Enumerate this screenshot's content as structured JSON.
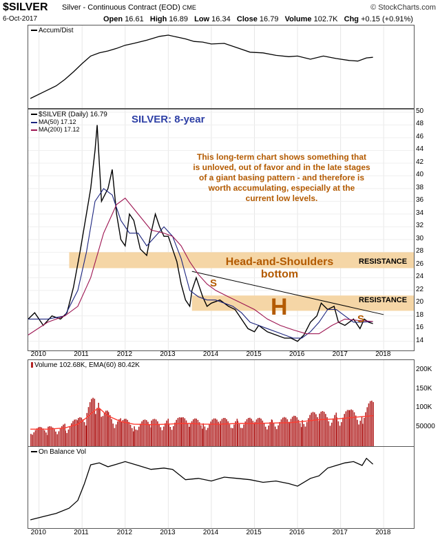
{
  "header": {
    "symbol": "$SILVER",
    "description": "Silver - Continuous Contract (EOD)",
    "exchange": "CME",
    "brand": "© StockCharts.com",
    "date": "6-Oct-2017",
    "open_label": "Open",
    "open": "16.61",
    "high_label": "High",
    "high": "16.89",
    "low_label": "Low",
    "low": "16.34",
    "close_label": "Close",
    "close": "16.79",
    "volume_label": "Volume",
    "volume": "102.7K",
    "chg_label": "Chg",
    "chg": "+0.15 (+0.91%)"
  },
  "colors": {
    "price": "#000000",
    "ma50": "#1a237e",
    "ma200": "#9c1350",
    "band": "#f5d6a6",
    "volume_bar": "#b22222",
    "volume_ema": "#ff3b30",
    "annotation": "#b35a00",
    "title_blue": "#2d3fa5"
  },
  "panels": {
    "accum": {
      "label": "Accum/Dist"
    },
    "price": {
      "label": "$SILVER (Daily) 16.79",
      "ma50_label": "MA(50) 17.12",
      "ma200_label": "MA(200) 17.12",
      "y_ticks": [
        "50",
        "48",
        "46",
        "44",
        "42",
        "40",
        "38",
        "36",
        "34",
        "32",
        "30",
        "28",
        "26",
        "24",
        "22",
        "20",
        "18",
        "16",
        "14"
      ]
    },
    "volume": {
      "label": "Volume 102.68K, EMA(60) 80.42K",
      "y_ticks": [
        "200K",
        "150K",
        "100K",
        "50000"
      ]
    },
    "obv": {
      "label": "On Balance Vol"
    }
  },
  "annotations": {
    "title": "SILVER: 8-year",
    "comment_lines": [
      "This long-term chart shows something that",
      "is unloved, out of favor and in the late stages",
      "of a giant basing pattern - and therefore is",
      "worth accumulating, especially at the",
      "current low levels."
    ],
    "pattern_line1": "Head-and-Shoulders",
    "pattern_line2": "bottom",
    "resistance_upper": "RESISTANCE",
    "resistance_lower": "RESISTANCE",
    "left_shoulder": "S",
    "head": "H",
    "right_shoulder": "S"
  },
  "x_axis": [
    "2010",
    "2011",
    "2012",
    "2013",
    "2014",
    "2015",
    "2016",
    "2017",
    "2018"
  ],
  "chart_data": [
    {
      "type": "line",
      "title": "Accum/Dist",
      "x": [
        2009.8,
        2010.1,
        2010.4,
        2010.6,
        2010.8,
        2011.0,
        2011.2,
        2011.4,
        2011.6,
        2011.8,
        2012.0,
        2012.2,
        2012.5,
        2012.8,
        2013.0,
        2013.2,
        2013.4,
        2013.6,
        2013.8,
        2014.0,
        2014.3,
        2014.6,
        2014.9,
        2015.2,
        2015.5,
        2015.8,
        2016.0,
        2016.3,
        2016.6,
        2016.9,
        2017.2,
        2017.4,
        2017.6,
        2017.75
      ],
      "values": [
        0,
        10,
        20,
        30,
        42,
        55,
        67,
        72,
        75,
        79,
        84,
        87,
        92,
        98,
        100,
        97,
        94,
        90,
        89,
        86,
        87,
        80,
        73,
        72,
        68,
        66,
        67,
        62,
        67,
        63,
        60,
        59,
        64,
        65
      ],
      "ylim": [
        0,
        100
      ]
    },
    {
      "type": "line",
      "title": "$SILVER (Daily) 16.79",
      "series": [
        {
          "name": "$SILVER (Daily) 16.79",
          "x": [
            2009.75,
            2009.9,
            2010.1,
            2010.3,
            2010.5,
            2010.65,
            2010.8,
            2010.95,
            2011.1,
            2011.2,
            2011.3,
            2011.35,
            2011.45,
            2011.6,
            2011.7,
            2011.8,
            2011.9,
            2012.0,
            2012.1,
            2012.2,
            2012.35,
            2012.5,
            2012.6,
            2012.7,
            2012.8,
            2012.9,
            2013.0,
            2013.1,
            2013.2,
            2013.3,
            2013.4,
            2013.5,
            2013.55,
            2013.65,
            2013.8,
            2013.9,
            2014.0,
            2014.2,
            2014.4,
            2014.55,
            2014.7,
            2014.85,
            2015.0,
            2015.1,
            2015.3,
            2015.5,
            2015.7,
            2015.85,
            2016.0,
            2016.15,
            2016.3,
            2016.45,
            2016.55,
            2016.7,
            2016.85,
            2016.95,
            2017.1,
            2017.3,
            2017.45,
            2017.55,
            2017.65,
            2017.75
          ],
          "values": [
            17.5,
            18.5,
            16.5,
            18.0,
            17.5,
            18.5,
            22.5,
            28.0,
            34.0,
            38.0,
            44.0,
            48.0,
            36.0,
            38.0,
            41.0,
            34.0,
            30.0,
            29.0,
            34.0,
            33.0,
            28.5,
            27.5,
            31.0,
            34.0,
            32.0,
            30.5,
            30.5,
            28.5,
            26.5,
            23.0,
            20.5,
            19.5,
            22.0,
            24.0,
            21.0,
            19.5,
            20.0,
            20.5,
            19.5,
            19.0,
            17.5,
            16.0,
            15.5,
            16.5,
            15.5,
            15.0,
            14.5,
            14.5,
            14.0,
            15.0,
            17.0,
            18.0,
            20.0,
            19.0,
            19.5,
            17.0,
            16.5,
            17.5,
            16.0,
            17.5,
            17.0,
            16.79
          ]
        },
        {
          "name": "MA(50) 17.12",
          "x": [
            2009.75,
            2010.2,
            2010.6,
            2010.9,
            2011.1,
            2011.3,
            2011.5,
            2011.7,
            2011.9,
            2012.1,
            2012.3,
            2012.5,
            2012.7,
            2012.9,
            2013.1,
            2013.3,
            2013.5,
            2013.7,
            2013.9,
            2014.1,
            2014.3,
            2014.5,
            2014.7,
            2014.9,
            2015.1,
            2015.3,
            2015.5,
            2015.7,
            2015.9,
            2016.1,
            2016.3,
            2016.5,
            2016.7,
            2016.9,
            2017.1,
            2017.3,
            2017.5,
            2017.75
          ],
          "values": [
            17.5,
            17.5,
            18.0,
            22.0,
            28.0,
            36.0,
            38.0,
            37.0,
            33.0,
            31.0,
            31.0,
            29.0,
            30.5,
            32.0,
            30.5,
            27.0,
            22.0,
            21.0,
            20.5,
            20.5,
            20.0,
            19.5,
            18.5,
            17.0,
            16.5,
            16.0,
            15.5,
            15.0,
            14.5,
            14.5,
            15.5,
            17.0,
            19.0,
            19.0,
            18.0,
            17.0,
            17.0,
            17.12
          ]
        },
        {
          "name": "MA(200) 17.12",
          "x": [
            2009.75,
            2010.2,
            2010.6,
            2010.9,
            2011.2,
            2011.5,
            2011.8,
            2012.0,
            2012.3,
            2012.6,
            2012.9,
            2013.1,
            2013.3,
            2013.5,
            2013.7,
            2013.9,
            2014.1,
            2014.4,
            2014.7,
            2015.0,
            2015.3,
            2015.6,
            2015.9,
            2016.2,
            2016.5,
            2016.8,
            2017.1,
            2017.4,
            2017.75
          ],
          "values": [
            15.0,
            17.0,
            18.0,
            19.5,
            24.0,
            31.0,
            35.5,
            36.5,
            34.0,
            31.5,
            31.0,
            30.5,
            29.0,
            26.5,
            24.5,
            23.0,
            22.0,
            21.0,
            20.0,
            19.0,
            17.5,
            16.5,
            15.8,
            15.2,
            15.2,
            16.5,
            17.5,
            17.3,
            17.12
          ]
        }
      ],
      "bands": [
        {
          "name": "RESISTANCE",
          "ylim": [
            25.5,
            28.0
          ]
        },
        {
          "name": "RESISTANCE",
          "ylim": [
            18.8,
            21.2
          ]
        }
      ],
      "trendline": {
        "x": [
          2013.55,
          2018.0
        ],
        "y": [
          25.0,
          18.2
        ]
      },
      "ylim": [
        13,
        50
      ],
      "xlim": [
        2009.75,
        2018.7
      ]
    },
    {
      "type": "bar",
      "title": "Volume 102.68K, EMA(60) 80.42K",
      "x": [
        2009.8,
        2010.2,
        2010.6,
        2010.9,
        2011.1,
        2011.3,
        2011.4,
        2011.6,
        2011.9,
        2012.2,
        2012.6,
        2013.0,
        2013.3,
        2013.5,
        2013.8,
        2014.2,
        2014.6,
        2015.0,
        2015.4,
        2015.8,
        2016.1,
        2016.5,
        2016.9,
        2017.2,
        2017.5,
        2017.75
      ],
      "values": [
        40000,
        42000,
        48000,
        60000,
        80000,
        120000,
        110000,
        75000,
        60000,
        55000,
        58000,
        60000,
        62000,
        60000,
        58000,
        60000,
        62000,
        60000,
        62000,
        62000,
        70000,
        75000,
        74000,
        78000,
        80000,
        102680
      ],
      "ema": [
        45000,
        45000,
        48000,
        58000,
        75000,
        95000,
        100000,
        80000,
        65000,
        58000,
        57000,
        58000,
        60000,
        60000,
        58000,
        58000,
        60000,
        60000,
        61000,
        62000,
        65000,
        70000,
        72000,
        75000,
        78000,
        80420
      ],
      "ylim": [
        0,
        220000
      ]
    },
    {
      "type": "line",
      "title": "On Balance Vol",
      "x": [
        2009.8,
        2010.1,
        2010.4,
        2010.7,
        2010.9,
        2011.05,
        2011.2,
        2011.4,
        2011.6,
        2011.8,
        2012.0,
        2012.3,
        2012.6,
        2012.9,
        2013.1,
        2013.4,
        2013.7,
        2014.0,
        2014.3,
        2014.6,
        2014.9,
        2015.2,
        2015.5,
        2015.8,
        2016.0,
        2016.3,
        2016.5,
        2016.7,
        2016.9,
        2017.1,
        2017.3,
        2017.5,
        2017.6,
        2017.75
      ],
      "values": [
        0,
        5,
        10,
        18,
        30,
        55,
        85,
        88,
        82,
        86,
        90,
        84,
        78,
        80,
        78,
        62,
        64,
        60,
        66,
        64,
        62,
        58,
        60,
        56,
        52,
        64,
        68,
        80,
        84,
        88,
        90,
        84,
        95,
        86
      ],
      "ylim": [
        0,
        100
      ]
    }
  ]
}
